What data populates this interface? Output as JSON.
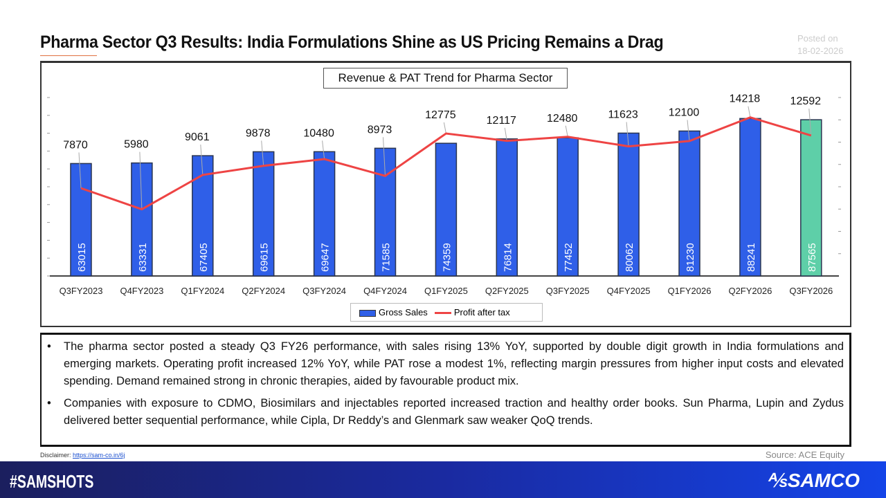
{
  "title": "Pharma Sector Q3 Results: India Formulations Shine as US Pricing Remains a Drag",
  "posted_label": "Posted on",
  "posted_date": "18-02-2026",
  "chart_data": {
    "type": "bar+line",
    "title": "Revenue & PAT Trend for Pharma Sector",
    "categories": [
      "Q3FY2023",
      "Q4FY2023",
      "Q1FY2024",
      "Q2FY2024",
      "Q3FY2024",
      "Q4FY2024",
      "Q1FY2025",
      "Q2FY2025",
      "Q3FY2025",
      "Q4FY2025",
      "Q1FY2026",
      "Q2FY2026",
      "Q3FY2026"
    ],
    "series": [
      {
        "name": "Gross Sales",
        "type": "bar",
        "axis": "left",
        "color": "#2f5fe8",
        "highlight_color": "#5ecfa8",
        "values": [
          63015,
          63331,
          67405,
          69615,
          69647,
          71585,
          74359,
          76814,
          77452,
          80062,
          81230,
          88241,
          87565
        ]
      },
      {
        "name": "Profit after tax",
        "type": "line",
        "axis": "right",
        "color": "#ee4444",
        "values": [
          7870,
          5980,
          9061,
          9878,
          10480,
          8973,
          12775,
          12117,
          12480,
          11623,
          12100,
          14218,
          12592
        ]
      }
    ],
    "ylim_left": [
      0,
      100000
    ],
    "ylim_right": [
      0,
      16000
    ],
    "legend": "bottom",
    "grid": false
  },
  "notes": [
    "The pharma sector posted a steady Q3 FY26 performance, with sales rising 13% YoY, supported by double digit growth in India formulations and emerging markets. Operating profit increased 12% YoY, while PAT rose a modest 1%, reflecting margin pressures from higher input costs and elevated spending. Demand remained strong in chronic therapies, aided by favourable product mix.",
    "Companies with exposure to CDMO, Biosimilars and injectables reported increased traction and healthy order books. Sun Pharma, Lupin and Zydus delivered better sequential performance, while Cipla, Dr Reddy’s and Glenmark saw weaker QoQ trends."
  ],
  "bullet": "•",
  "disclaimer_label": "Disclaimer:",
  "disclaimer_link": "https://sam-co.in/6j",
  "source": "Source: ACE Equity",
  "footer_tag": "#SAMSHOTS",
  "brand": "SAMCO"
}
